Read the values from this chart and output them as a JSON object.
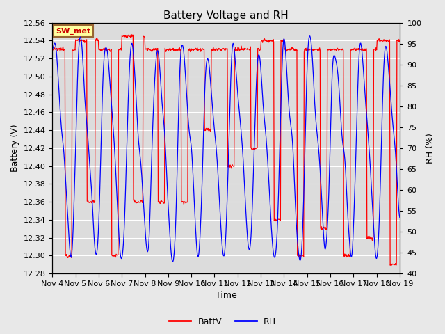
{
  "title": "Battery Voltage and RH",
  "xlabel": "Time",
  "ylabel_left": "Battery (V)",
  "ylabel_right": "RH (%)",
  "ylim_left": [
    12.28,
    12.56
  ],
  "ylim_right": [
    40,
    100
  ],
  "yticks_left": [
    12.28,
    12.3,
    12.32,
    12.34,
    12.36,
    12.38,
    12.4,
    12.42,
    12.44,
    12.46,
    12.48,
    12.5,
    12.52,
    12.54,
    12.56
  ],
  "yticks_right": [
    40,
    45,
    50,
    55,
    60,
    65,
    70,
    75,
    80,
    85,
    90,
    95,
    100
  ],
  "xtick_labels": [
    "Nov 4",
    "Nov 5",
    "Nov 6",
    "Nov 7",
    "Nov 8",
    "Nov 9",
    "Nov 10",
    "Nov 11",
    "Nov 12",
    "Nov 13",
    "Nov 14",
    "Nov 15",
    "Nov 16",
    "Nov 17",
    "Nov 18",
    "Nov 19"
  ],
  "station_label": "SW_met",
  "station_label_bg": "#FFFFA0",
  "station_label_border": "#996633",
  "line_color_batt": "#FF0000",
  "line_color_rh": "#0000FF",
  "legend_labels": [
    "BattV",
    "RH"
  ],
  "fig_bg_color": "#E8E8E8",
  "plot_bg_color": "#DCDCDC",
  "grid_color": "#FFFFFF",
  "title_fontsize": 11,
  "label_fontsize": 9,
  "tick_fontsize": 8
}
